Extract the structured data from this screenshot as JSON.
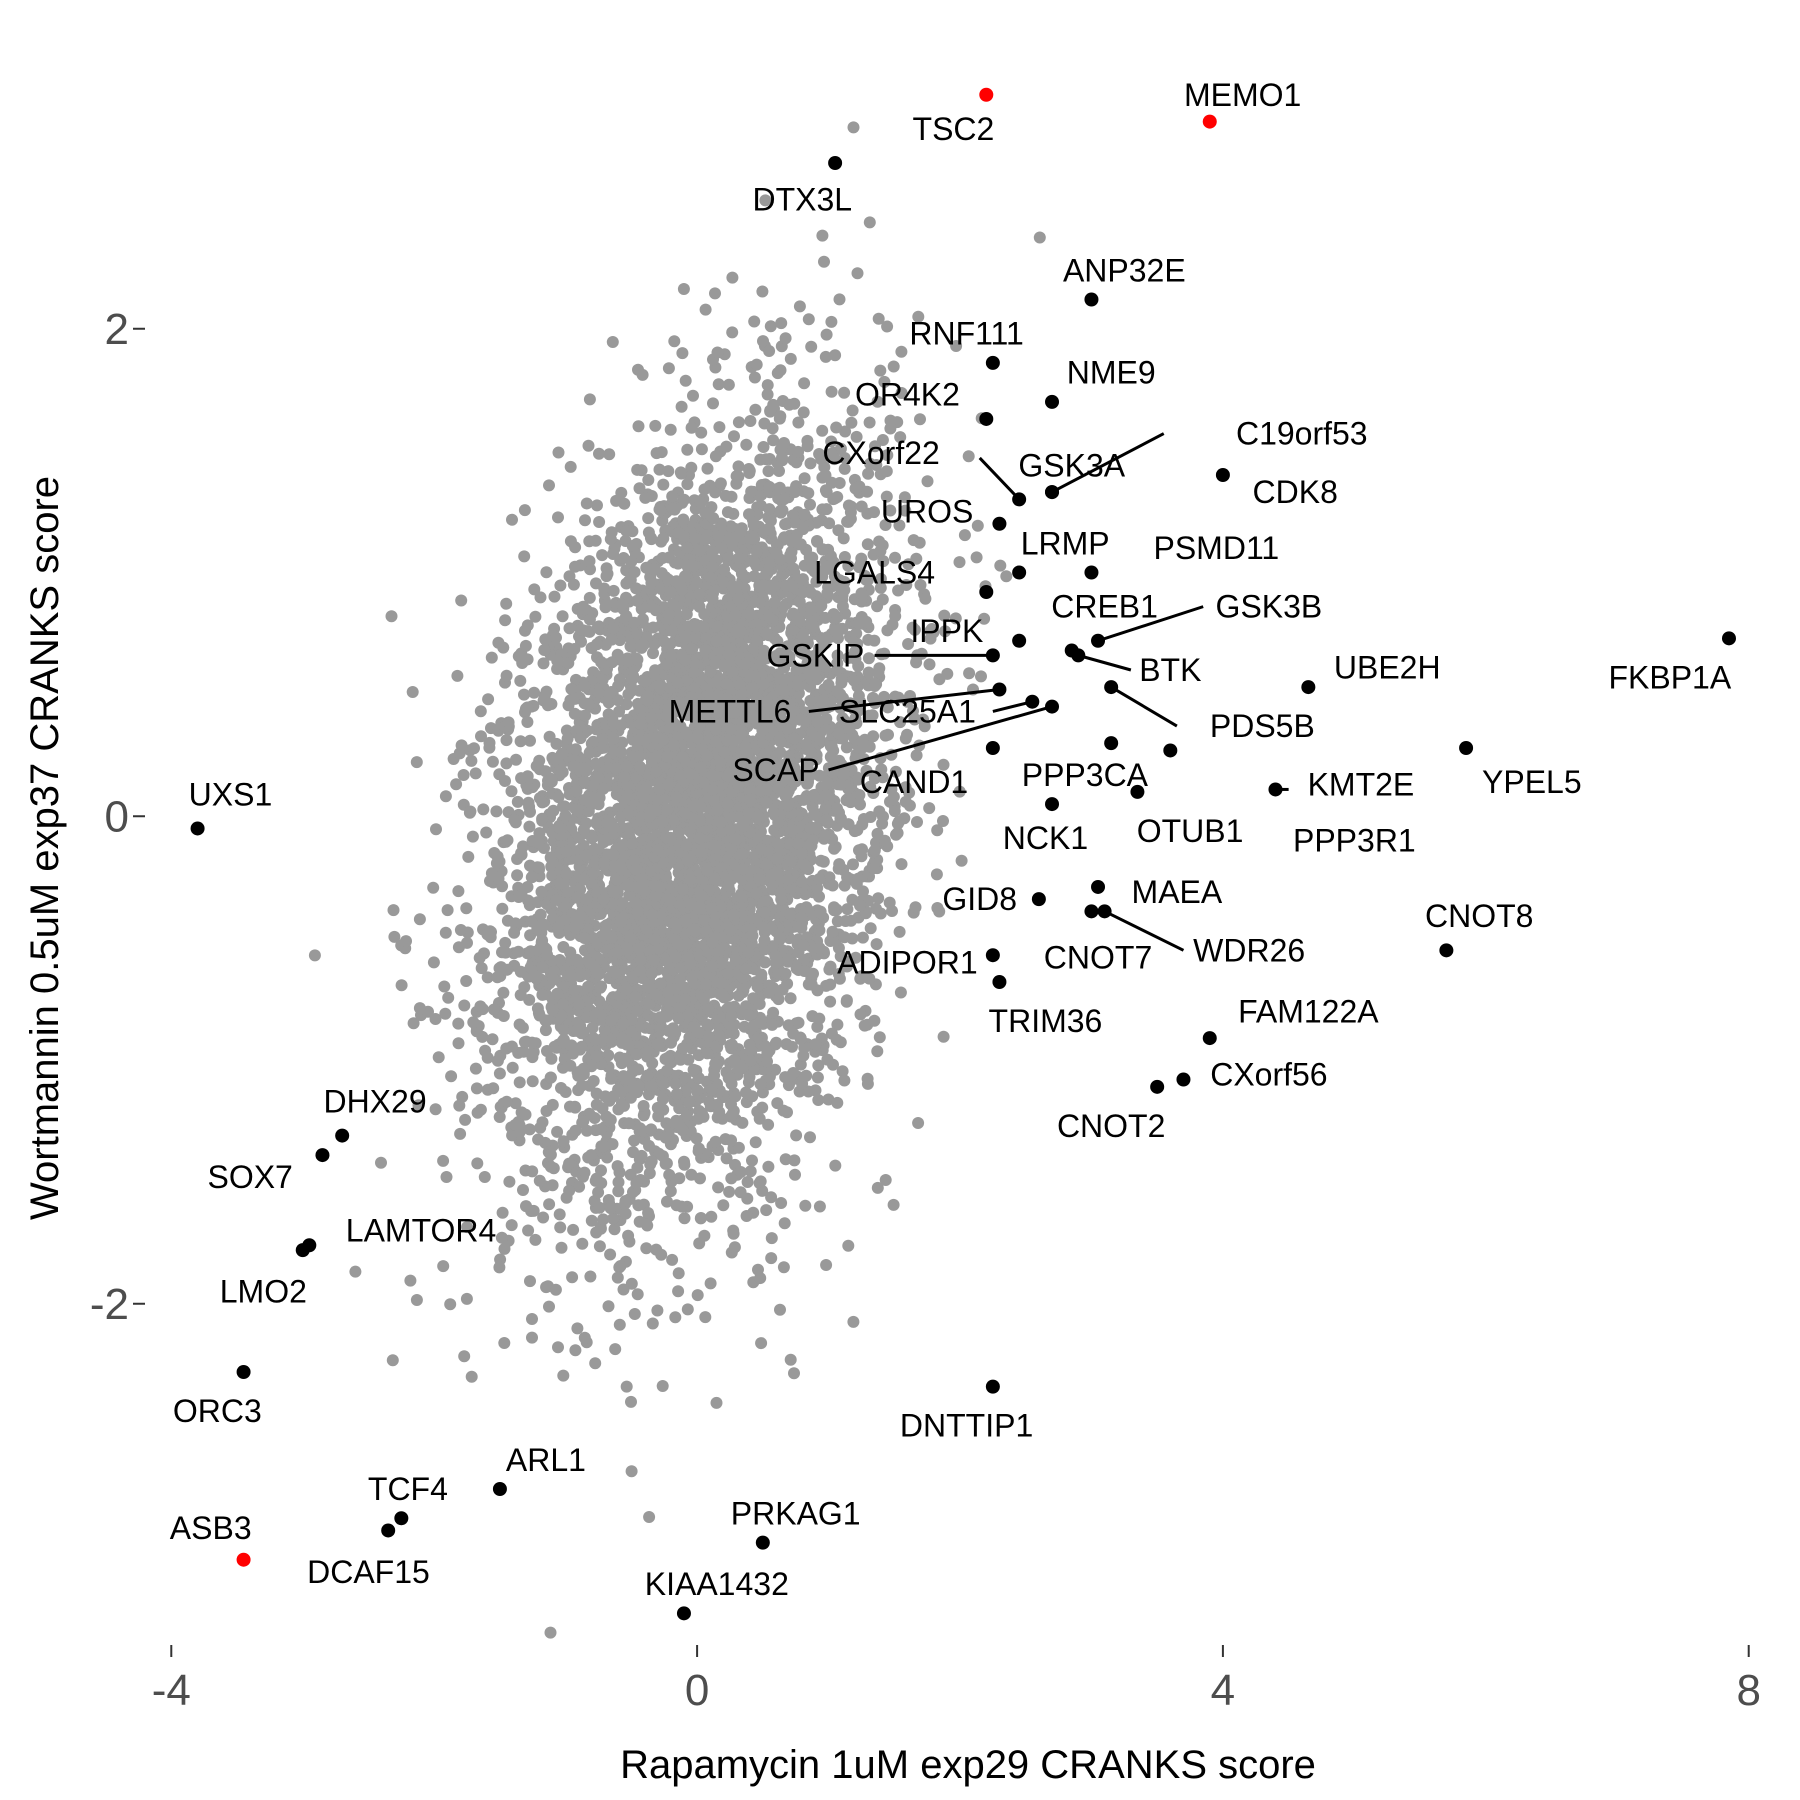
{
  "chart_data": {
    "type": "scatter",
    "xlabel": "Rapamycin 1uM exp29 CRANKS score",
    "ylabel": "Wortmannin 0.5uM exp37 CRANKS score",
    "xlim": [
      -4.2,
      8.2
    ],
    "ylim": [
      -3.4,
      3.0
    ],
    "x_ticks": [
      {
        "value": -4,
        "label": "-4"
      },
      {
        "value": 0,
        "label": "0"
      },
      {
        "value": 4,
        "label": "4"
      },
      {
        "value": 8,
        "label": "8"
      }
    ],
    "y_ticks": [
      {
        "value": 2,
        "label": "2"
      },
      {
        "value": 0,
        "label": "0"
      },
      {
        "value": -2,
        "label": "-2"
      }
    ],
    "grid": false,
    "legend": "none",
    "colors": {
      "background": "#999999",
      "highlight": "#000000",
      "hit": "#ff0000"
    },
    "background_cloud": {
      "description_count": 6000,
      "center": [
        0.0,
        0.0
      ],
      "sd": [
        0.72,
        0.75
      ],
      "correlation": 0.3
    },
    "points": [
      {
        "label": "TSC2",
        "x": 2.2,
        "y": 2.96,
        "color": "red",
        "label_x": 1.95,
        "label_y": 2.82
      },
      {
        "label": "MEMO1",
        "x": 3.9,
        "y": 2.85,
        "color": "red",
        "label_x": 4.15,
        "label_y": 2.96
      },
      {
        "label": "DTX3L",
        "x": 1.05,
        "y": 2.68,
        "color": "black",
        "label_x": 0.8,
        "label_y": 2.53
      },
      {
        "label": "ANP32E",
        "x": 3.0,
        "y": 2.12,
        "color": "black",
        "label_x": 3.25,
        "label_y": 2.24
      },
      {
        "label": "RNF111",
        "x": 2.25,
        "y": 1.86,
        "color": "black",
        "label_x": 2.05,
        "label_y": 1.98
      },
      {
        "label": "NME9",
        "x": 2.7,
        "y": 1.7,
        "color": "black",
        "label_x": 3.15,
        "label_y": 1.82
      },
      {
        "label": "OR4K2",
        "x": 2.2,
        "y": 1.63,
        "color": "black",
        "label_x": 1.6,
        "label_y": 1.73
      },
      {
        "label": "C19orf53",
        "x": 2.7,
        "y": 1.33,
        "color": "black",
        "label_x": 4.6,
        "label_y": 1.57,
        "line_to": [
          3.55,
          1.57
        ]
      },
      {
        "label": "CXorf22",
        "x": 2.45,
        "y": 1.3,
        "color": "black",
        "label_x": 1.4,
        "label_y": 1.49,
        "line_to": [
          2.15,
          1.47
        ]
      },
      {
        "label": "GSK3A",
        "x": 2.7,
        "y": 1.33,
        "color": "black",
        "label_x": 2.85,
        "label_y": 1.44
      },
      {
        "label": "CDK8",
        "x": 4.0,
        "y": 1.4,
        "color": "black",
        "label_x": 4.55,
        "label_y": 1.33
      },
      {
        "label": "UROS",
        "x": 2.3,
        "y": 1.2,
        "color": "black",
        "label_x": 1.75,
        "label_y": 1.25
      },
      {
        "label": "LRMP",
        "x": 2.45,
        "y": 1.0,
        "color": "black",
        "label_x": 2.8,
        "label_y": 1.12
      },
      {
        "label": "PSMD11",
        "x": 3.0,
        "y": 1.0,
        "color": "black",
        "label_x": 3.95,
        "label_y": 1.1
      },
      {
        "label": "LGALS4",
        "x": 2.2,
        "y": 0.92,
        "color": "black",
        "label_x": 1.35,
        "label_y": 1.0
      },
      {
        "label": "GSK3B",
        "x": 3.05,
        "y": 0.72,
        "color": "black",
        "label_x": 4.35,
        "label_y": 0.86,
        "line_to": [
          3.85,
          0.86
        ]
      },
      {
        "label": "CREB1",
        "x": 2.85,
        "y": 0.68,
        "color": "black",
        "label_x": 3.1,
        "label_y": 0.86
      },
      {
        "label": "IPPK",
        "x": 2.45,
        "y": 0.72,
        "color": "black",
        "label_x": 1.9,
        "label_y": 0.76
      },
      {
        "label": "GSKIP",
        "x": 2.25,
        "y": 0.66,
        "color": "black",
        "label_x": 0.9,
        "label_y": 0.66,
        "line_to": [
          1.35,
          0.66
        ]
      },
      {
        "label": "BTK",
        "x": 2.9,
        "y": 0.66,
        "color": "black",
        "label_x": 3.6,
        "label_y": 0.6,
        "line_to": [
          3.3,
          0.6
        ]
      },
      {
        "label": "UBE2H",
        "x": 4.65,
        "y": 0.53,
        "color": "black",
        "label_x": 5.25,
        "label_y": 0.61
      },
      {
        "label": "FKBP1A",
        "x": 7.85,
        "y": 0.73,
        "color": "black",
        "label_x": 7.4,
        "label_y": 0.57
      },
      {
        "label": "METTL6",
        "x": 2.3,
        "y": 0.52,
        "color": "black",
        "label_x": 0.25,
        "label_y": 0.43,
        "line_to": [
          0.85,
          0.43
        ]
      },
      {
        "label": "SLC25A1",
        "x": 2.55,
        "y": 0.47,
        "color": "black",
        "label_x": 1.6,
        "label_y": 0.43,
        "line_to": [
          2.25,
          0.43
        ]
      },
      {
        "label": "PDS5B",
        "x": 3.15,
        "y": 0.53,
        "color": "black",
        "label_x": 4.3,
        "label_y": 0.37,
        "line_to": [
          3.65,
          0.37
        ]
      },
      {
        "label": "SCAP",
        "x": 2.7,
        "y": 0.45,
        "color": "black",
        "label_x": 0.6,
        "label_y": 0.19,
        "line_to": [
          1.0,
          0.19
        ]
      },
      {
        "label": "CAND1",
        "x": 2.25,
        "y": 0.28,
        "color": "black",
        "label_x": 1.65,
        "label_y": 0.14
      },
      {
        "label": "PPP3CA",
        "x": 3.15,
        "y": 0.3,
        "color": "black",
        "label_x": 2.95,
        "label_y": 0.17
      },
      {
        "label": "KMT2E",
        "x": 4.4,
        "y": 0.11,
        "color": "black",
        "label_x": 5.05,
        "label_y": 0.13,
        "line_to": [
          4.5,
          0.11
        ]
      },
      {
        "label": "YPEL5",
        "x": 5.85,
        "y": 0.28,
        "color": "black",
        "label_x": 6.35,
        "label_y": 0.14
      },
      {
        "label": "PPP3R1",
        "x": 3.6,
        "y": 0.27,
        "color": "black",
        "label_x": 5.0,
        "label_y": -0.1
      },
      {
        "label": "OTUB1",
        "x": 3.35,
        "y": 0.1,
        "color": "black",
        "label_x": 3.75,
        "label_y": -0.06
      },
      {
        "label": "NCK1",
        "x": 2.7,
        "y": 0.05,
        "color": "black",
        "label_x": 2.65,
        "label_y": -0.09
      },
      {
        "label": "UXS1",
        "x": -3.8,
        "y": -0.05,
        "color": "black",
        "label_x": -3.55,
        "label_y": 0.09
      },
      {
        "label": "MAEA",
        "x": 3.05,
        "y": -0.29,
        "color": "black",
        "label_x": 3.65,
        "label_y": -0.31
      },
      {
        "label": "GID8",
        "x": 2.6,
        "y": -0.34,
        "color": "black",
        "label_x": 2.15,
        "label_y": -0.34
      },
      {
        "label": "WDR26",
        "x": 3.1,
        "y": -0.39,
        "color": "black",
        "label_x": 4.2,
        "label_y": -0.55,
        "line_to": [
          3.7,
          -0.55
        ]
      },
      {
        "label": "CNOT8",
        "x": 5.7,
        "y": -0.55,
        "color": "black",
        "label_x": 5.95,
        "label_y": -0.41
      },
      {
        "label": "ADIPOR1",
        "x": 2.25,
        "y": -0.57,
        "color": "black",
        "label_x": 1.6,
        "label_y": -0.6
      },
      {
        "label": "CNOT7",
        "x": 3.0,
        "y": -0.39,
        "color": "black",
        "label_x": 3.05,
        "label_y": -0.58
      },
      {
        "label": "TRIM36",
        "x": 2.3,
        "y": -0.68,
        "color": "black",
        "label_x": 2.65,
        "label_y": -0.84
      },
      {
        "label": "FAM122A",
        "x": 3.9,
        "y": -0.91,
        "color": "black",
        "label_x": 4.65,
        "label_y": -0.8
      },
      {
        "label": "CXorf56",
        "x": 3.7,
        "y": -1.08,
        "color": "black",
        "label_x": 4.35,
        "label_y": -1.06
      },
      {
        "label": "CNOT2",
        "x": 3.5,
        "y": -1.11,
        "color": "black",
        "label_x": 3.15,
        "label_y": -1.27
      },
      {
        "label": "DHX29",
        "x": -2.7,
        "y": -1.31,
        "color": "black",
        "label_x": -2.45,
        "label_y": -1.17
      },
      {
        "label": "SOX7",
        "x": -2.85,
        "y": -1.39,
        "color": "black",
        "label_x": -3.4,
        "label_y": -1.48
      },
      {
        "label": "LAMTOR4",
        "x": -2.95,
        "y": -1.76,
        "color": "black",
        "label_x": -2.1,
        "label_y": -1.7
      },
      {
        "label": "LMO2",
        "x": -3.0,
        "y": -1.78,
        "color": "black",
        "label_x": -3.3,
        "label_y": -1.95
      },
      {
        "label": "ORC3",
        "x": -3.45,
        "y": -2.28,
        "color": "black",
        "label_x": -3.65,
        "label_y": -2.44
      },
      {
        "label": "DNTTIP1",
        "x": 2.25,
        "y": -2.34,
        "color": "black",
        "label_x": 2.05,
        "label_y": -2.5
      },
      {
        "label": "ARL1",
        "x": -1.5,
        "y": -2.76,
        "color": "black",
        "label_x": -1.15,
        "label_y": -2.64
      },
      {
        "label": "TCF4",
        "x": -2.25,
        "y": -2.88,
        "color": "black",
        "label_x": -2.2,
        "label_y": -2.76
      },
      {
        "label": "DCAF15",
        "x": -2.35,
        "y": -2.93,
        "color": "black",
        "label_x": -2.5,
        "label_y": -3.1
      },
      {
        "label": "ASB3",
        "x": -3.45,
        "y": -3.05,
        "color": "red",
        "label_x": -3.7,
        "label_y": -2.92
      },
      {
        "label": "PRKAG1",
        "x": 0.5,
        "y": -2.98,
        "color": "black",
        "label_x": 0.75,
        "label_y": -2.86
      },
      {
        "label": "KIAA1432",
        "x": -0.1,
        "y": -3.27,
        "color": "black",
        "label_x": 0.15,
        "label_y": -3.15
      }
    ]
  }
}
